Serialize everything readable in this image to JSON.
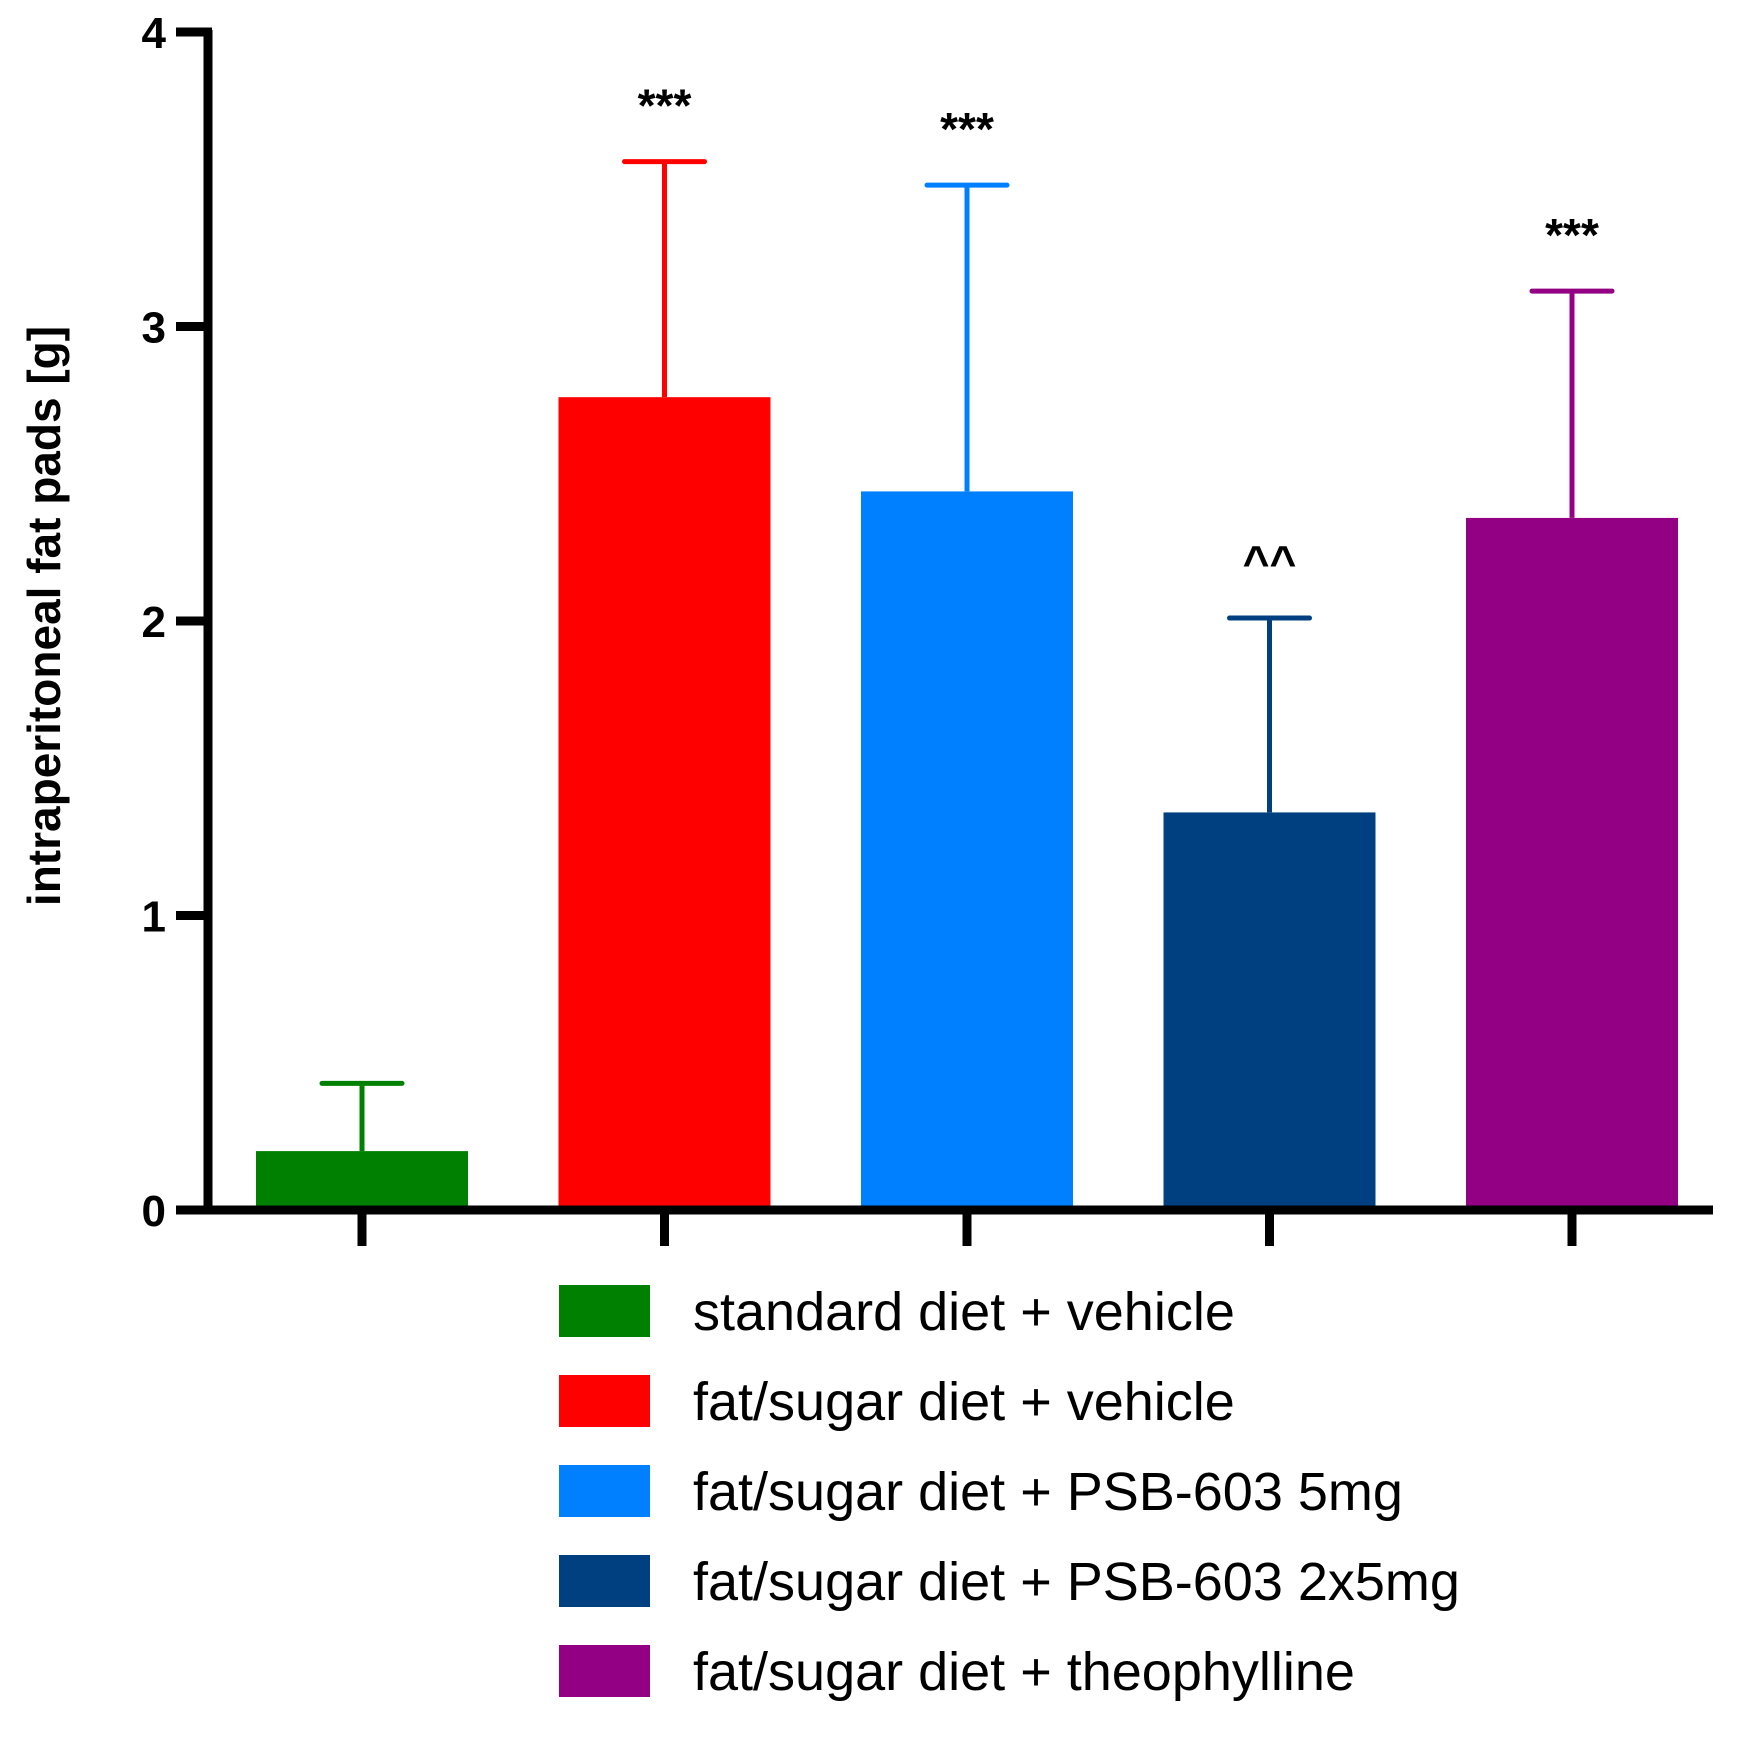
{
  "chart_data": {
    "type": "bar",
    "title": "",
    "xlabel": "",
    "ylabel": "intraperitoneal fat pads [g]",
    "ylim": [
      0,
      4
    ],
    "yticks": [
      "0",
      "1",
      "2",
      "3",
      "4"
    ],
    "grid": false,
    "legend_position": "bottom",
    "series": [
      {
        "name": "standard diet + vehicle",
        "color": "#008000",
        "value": 0.2,
        "error": 0.23,
        "annotation": ""
      },
      {
        "name": "fat/sugar diet + vehicle",
        "color": "#ff0000",
        "value": 2.76,
        "error": 0.8,
        "annotation": "***"
      },
      {
        "name": "fat/sugar diet + PSB-603 5mg",
        "color": "#0080ff",
        "value": 2.44,
        "error": 1.04,
        "annotation": "***"
      },
      {
        "name": "fat/sugar diet + PSB-603 2x5mg",
        "color": "#004080",
        "value": 1.35,
        "error": 0.66,
        "annotation": "^^"
      },
      {
        "name": "fat/sugar diet + theophylline",
        "color": "#940084",
        "value": 2.35,
        "error": 0.77,
        "annotation": "***"
      }
    ]
  }
}
